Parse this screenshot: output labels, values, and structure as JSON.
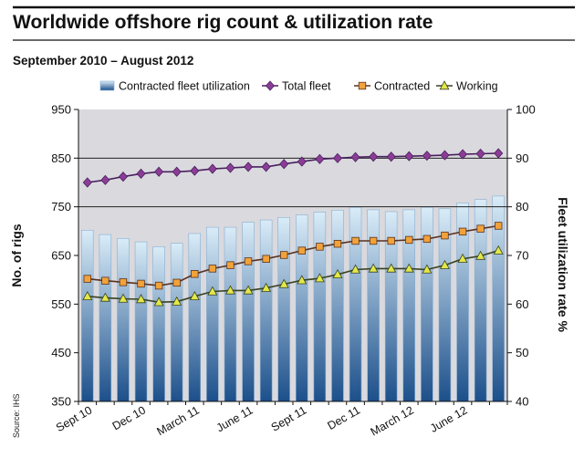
{
  "chart_data": {
    "type": "bar+line",
    "title": "Worldwide offshore rig count & utilization rate",
    "subtitle": "September 2010 – August 2012",
    "source": "Source: IHS",
    "ylabel_left": "No. of rigs",
    "ylabel_right": "Fleet utilization rate %",
    "ylim_left": [
      350,
      950
    ],
    "ylim_right": [
      40,
      100
    ],
    "yticks_left": [
      "950",
      "850",
      "750",
      "650",
      "550",
      "450",
      "350"
    ],
    "yticks_right": [
      "100",
      "90",
      "80",
      "70",
      "60",
      "50",
      "40"
    ],
    "xtick_labels": [
      "Sept 10",
      "Dec 10",
      "March 11",
      "June 11",
      "Sept 11",
      "Dec 11",
      "March 12",
      "June 12"
    ],
    "xtick_indices": [
      0,
      3,
      6,
      9,
      12,
      15,
      18,
      21
    ],
    "months": [
      "Sep 2010",
      "Oct 2010",
      "Nov 2010",
      "Dec 2010",
      "Jan 2011",
      "Feb 2011",
      "Mar 2011",
      "Apr 2011",
      "May 2011",
      "Jun 2011",
      "Jul 2011",
      "Aug 2011",
      "Sep 2011",
      "Oct 2011",
      "Nov 2011",
      "Dec 2011",
      "Jan 2012",
      "Feb 2012",
      "Mar 2012",
      "Apr 2012",
      "May 2012",
      "Jun 2012",
      "Jul 2012",
      "Aug 2012"
    ],
    "legend": [
      "Contracted fleet utilization",
      "Total fleet",
      "Contracted",
      "Working"
    ],
    "series": [
      {
        "name": "Contracted fleet utilization",
        "kind": "bar",
        "axis": "right",
        "values": [
          75.2,
          74.3,
          73.5,
          72.8,
          71.8,
          72.5,
          74.5,
          75.8,
          75.8,
          76.8,
          77.3,
          77.8,
          78.3,
          78.9,
          79.3,
          79.9,
          79.4,
          79.0,
          79.4,
          79.9,
          79.6,
          80.8,
          81.5,
          82.2
        ]
      },
      {
        "name": "Total fleet",
        "kind": "line",
        "axis": "left",
        "marker": "diamond",
        "values": [
          800,
          805,
          812,
          818,
          822,
          822,
          824,
          828,
          830,
          832,
          832,
          838,
          843,
          848,
          850,
          852,
          853,
          853,
          854,
          855,
          856,
          858,
          859,
          860
        ]
      },
      {
        "name": "Contracted",
        "kind": "line",
        "axis": "left",
        "marker": "square",
        "values": [
          602,
          598,
          595,
          592,
          588,
          594,
          612,
          623,
          630,
          638,
          643,
          651,
          660,
          668,
          674,
          680,
          680,
          680,
          682,
          684,
          691,
          699,
          705,
          711
        ]
      },
      {
        "name": "Working",
        "kind": "line",
        "axis": "left",
        "marker": "triangle",
        "values": [
          566,
          563,
          561,
          560,
          554,
          555,
          566,
          576,
          578,
          578,
          583,
          591,
          599,
          603,
          611,
          621,
          623,
          623,
          623,
          621,
          630,
          643,
          649,
          660
        ]
      }
    ],
    "colors": {
      "bar_top": "#d9ecf8",
      "bar_bottom": "#1c4f8a",
      "bar_edge": "#89aed0",
      "total_fleet": "#4a1f5e",
      "total_fleet_marker": "#8b3d96",
      "contracted": "#5a3220",
      "contracted_marker": "#f2a23a",
      "working": "#3a4220",
      "working_marker": "#e3e84a",
      "rule": "#111111",
      "plot_bg": "#d9d9de"
    },
    "grid": false
  }
}
